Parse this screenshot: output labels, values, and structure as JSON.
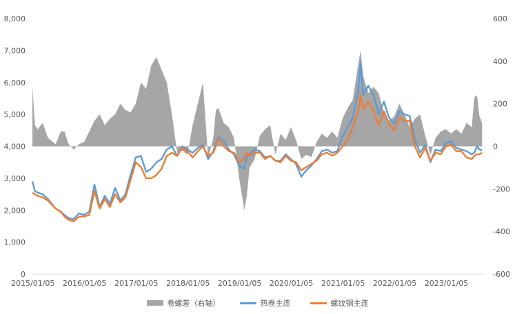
{
  "colors": {
    "spread": "#a6a6a6",
    "hot_coil": "#5b9bd5",
    "rebar": "#ed7d31",
    "axis_text": "#595959",
    "axis_line": "#d9d9d9"
  },
  "chart_data": {
    "type": "line",
    "title": "",
    "xlabel": "",
    "ylabel": "",
    "x_ticks": [
      "2015/01/05",
      "2016/01/05",
      "2017/01/05",
      "2018/01/05",
      "2019/01/05",
      "2020/01/05",
      "2021/01/05",
      "2022/01/05",
      "2023/01/05"
    ],
    "x_range": [
      2015.0,
      2023.75
    ],
    "y_left": {
      "range": [
        0,
        8000
      ],
      "ticks": [
        0,
        1000,
        2000,
        3000,
        4000,
        5000,
        6000,
        7000,
        8000
      ],
      "tick_labels": [
        "0",
        "1,000",
        "2,000",
        "3,000",
        "4,000",
        "5,000",
        "6,000",
        "7,000",
        "8,000"
      ]
    },
    "y_right": {
      "range": [
        -600,
        600
      ],
      "ticks": [
        -600,
        -400,
        -200,
        0,
        200,
        400,
        600
      ],
      "tick_labels": [
        "-600",
        "-400",
        "-200",
        "0",
        "200",
        "400",
        "600"
      ]
    },
    "legend_position": "bottom",
    "series": [
      {
        "name": "卷螺差（右轴）",
        "kind": "area",
        "axis": "right",
        "x": [
          2015.0,
          2015.05,
          2015.1,
          2015.2,
          2015.3,
          2015.45,
          2015.55,
          2015.62,
          2015.7,
          2015.8,
          2015.9,
          2016.0,
          2016.1,
          2016.2,
          2016.3,
          2016.4,
          2016.5,
          2016.6,
          2016.7,
          2016.8,
          2016.9,
          2017.0,
          2017.1,
          2017.2,
          2017.3,
          2017.4,
          2017.5,
          2017.6,
          2017.7,
          2017.8,
          2017.9,
          2018.0,
          2018.1,
          2018.2,
          2018.3,
          2018.4,
          2018.5,
          2018.55,
          2018.6,
          2018.7,
          2018.8,
          2018.9,
          2019.0,
          2019.1,
          2019.15,
          2019.2,
          2019.3,
          2019.4,
          2019.5,
          2019.6,
          2019.7,
          2019.8,
          2019.9,
          2020.0,
          2020.1,
          2020.2,
          2020.3,
          2020.4,
          2020.5,
          2020.6,
          2020.7,
          2020.8,
          2020.9,
          2021.0,
          2021.1,
          2021.2,
          2021.3,
          2021.35,
          2021.4,
          2021.5,
          2021.6,
          2021.7,
          2021.8,
          2021.9,
          2022.0,
          2022.1,
          2022.2,
          2022.3,
          2022.4,
          2022.5,
          2022.6,
          2022.7,
          2022.8,
          2022.9,
          2023.0,
          2023.1,
          2023.2,
          2023.3,
          2023.4,
          2023.5,
          2023.55,
          2023.6,
          2023.65,
          2023.7
        ],
        "values": [
          280,
          100,
          80,
          110,
          40,
          10,
          70,
          70,
          10,
          -15,
          10,
          20,
          70,
          120,
          150,
          100,
          130,
          150,
          200,
          170,
          160,
          200,
          300,
          270,
          380,
          420,
          360,
          300,
          150,
          -30,
          -20,
          -40,
          100,
          200,
          300,
          -60,
          40,
          170,
          180,
          110,
          90,
          40,
          -150,
          -300,
          -230,
          -100,
          -60,
          50,
          80,
          100,
          -40,
          60,
          30,
          90,
          30,
          -60,
          -40,
          -50,
          20,
          60,
          40,
          70,
          40,
          130,
          180,
          220,
          380,
          450,
          330,
          250,
          280,
          250,
          160,
          120,
          140,
          200,
          150,
          90,
          130,
          150,
          50,
          -40,
          40,
          70,
          80,
          60,
          80,
          60,
          110,
          90,
          230,
          240,
          140,
          110
        ]
      },
      {
        "name": "热卷主连",
        "kind": "line",
        "axis": "left",
        "x": [
          2015.0,
          2015.05,
          2015.1,
          2015.2,
          2015.3,
          2015.45,
          2015.55,
          2015.62,
          2015.7,
          2015.8,
          2015.9,
          2016.0,
          2016.1,
          2016.2,
          2016.3,
          2016.4,
          2016.5,
          2016.6,
          2016.7,
          2016.8,
          2016.9,
          2017.0,
          2017.1,
          2017.2,
          2017.3,
          2017.4,
          2017.5,
          2017.6,
          2017.7,
          2017.8,
          2017.9,
          2018.0,
          2018.1,
          2018.2,
          2018.3,
          2018.4,
          2018.5,
          2018.55,
          2018.6,
          2018.7,
          2018.8,
          2018.9,
          2019.0,
          2019.1,
          2019.15,
          2019.2,
          2019.3,
          2019.4,
          2019.5,
          2019.6,
          2019.7,
          2019.8,
          2019.9,
          2020.0,
          2020.1,
          2020.2,
          2020.3,
          2020.4,
          2020.5,
          2020.6,
          2020.7,
          2020.8,
          2020.9,
          2021.0,
          2021.1,
          2021.2,
          2021.3,
          2021.35,
          2021.4,
          2021.5,
          2021.6,
          2021.7,
          2021.8,
          2021.9,
          2022.0,
          2022.1,
          2022.2,
          2022.3,
          2022.4,
          2022.5,
          2022.6,
          2022.7,
          2022.8,
          2022.9,
          2023.0,
          2023.1,
          2023.2,
          2023.3,
          2023.4,
          2023.5,
          2023.55,
          2023.6,
          2023.65,
          2023.7
        ],
        "values": [
          2900,
          2600,
          2550,
          2500,
          2350,
          2050,
          1950,
          1850,
          1750,
          1720,
          1900,
          1850,
          1950,
          2800,
          2100,
          2450,
          2200,
          2700,
          2300,
          2500,
          3100,
          3650,
          3700,
          3200,
          3300,
          3500,
          3600,
          3900,
          4000,
          3700,
          4000,
          3900,
          3800,
          3950,
          4050,
          3600,
          3850,
          4100,
          4300,
          4150,
          3900,
          3750,
          3400,
          3300,
          3700,
          3750,
          3900,
          3850,
          3650,
          3700,
          3550,
          3550,
          3750,
          3600,
          3450,
          3050,
          3250,
          3400,
          3600,
          3850,
          3900,
          3800,
          3850,
          4300,
          4600,
          4900,
          5700,
          6600,
          5600,
          5900,
          5600,
          5000,
          5400,
          4900,
          4700,
          5100,
          5000,
          4950,
          4200,
          3800,
          4050,
          3500,
          3900,
          3850,
          4100,
          4150,
          3950,
          3900,
          3850,
          3750,
          3800,
          4000,
          3900,
          3870
        ]
      },
      {
        "name": "螺纹钢主连",
        "kind": "line",
        "axis": "left",
        "x": [
          2015.0,
          2015.05,
          2015.1,
          2015.2,
          2015.3,
          2015.45,
          2015.55,
          2015.62,
          2015.7,
          2015.8,
          2015.9,
          2016.0,
          2016.1,
          2016.2,
          2016.3,
          2016.4,
          2016.5,
          2016.6,
          2016.7,
          2016.8,
          2016.9,
          2017.0,
          2017.1,
          2017.2,
          2017.3,
          2017.4,
          2017.5,
          2017.6,
          2017.7,
          2017.8,
          2017.9,
          2018.0,
          2018.1,
          2018.2,
          2018.3,
          2018.4,
          2018.5,
          2018.55,
          2018.6,
          2018.7,
          2018.8,
          2018.9,
          2019.0,
          2019.1,
          2019.15,
          2019.2,
          2019.3,
          2019.4,
          2019.5,
          2019.6,
          2019.7,
          2019.8,
          2019.9,
          2020.0,
          2020.1,
          2020.2,
          2020.3,
          2020.4,
          2020.5,
          2020.6,
          2020.7,
          2020.8,
          2020.9,
          2021.0,
          2021.1,
          2021.2,
          2021.3,
          2021.35,
          2021.4,
          2021.5,
          2021.6,
          2021.7,
          2021.8,
          2021.9,
          2022.0,
          2022.1,
          2022.2,
          2022.3,
          2022.4,
          2022.5,
          2022.6,
          2022.7,
          2022.8,
          2022.9,
          2023.0,
          2023.1,
          2023.2,
          2023.3,
          2023.4,
          2023.5,
          2023.55,
          2023.6,
          2023.65,
          2023.7
        ],
        "values": [
          2550,
          2500,
          2450,
          2400,
          2300,
          2050,
          1950,
          1800,
          1700,
          1650,
          1800,
          1800,
          1850,
          2600,
          2050,
          2350,
          2100,
          2500,
          2250,
          2400,
          2950,
          3500,
          3350,
          3000,
          3000,
          3100,
          3300,
          3700,
          3800,
          3700,
          3950,
          3850,
          3650,
          3850,
          4000,
          3700,
          3800,
          4000,
          4250,
          4000,
          3850,
          3800,
          3500,
          3600,
          3800,
          3700,
          3800,
          3800,
          3600,
          3700,
          3550,
          3500,
          3700,
          3550,
          3500,
          3250,
          3350,
          3450,
          3550,
          3750,
          3800,
          3700,
          3800,
          4000,
          4200,
          4600,
          5100,
          5600,
          5150,
          5400,
          5100,
          4650,
          5100,
          4700,
          4500,
          4900,
          4800,
          4800,
          4000,
          3650,
          3950,
          3550,
          3800,
          3750,
          4000,
          4050,
          3850,
          3850,
          3650,
          3600,
          3700,
          3750,
          3750,
          3800
        ]
      }
    ]
  }
}
